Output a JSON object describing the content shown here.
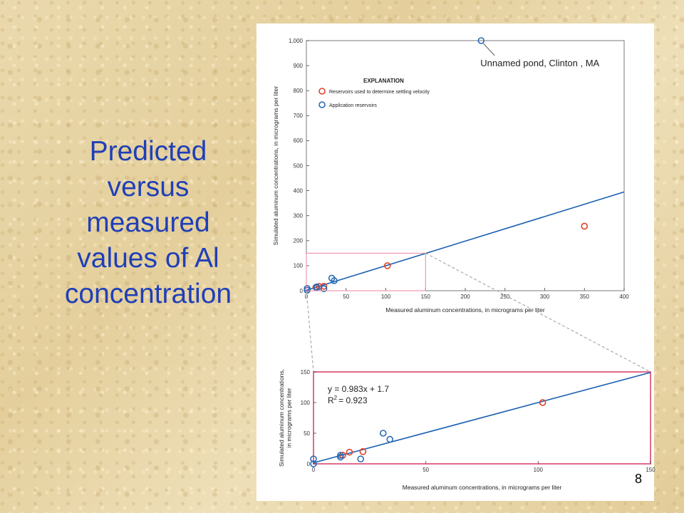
{
  "slide": {
    "title_lines": [
      "Predicted",
      "versus",
      "measured",
      "values of Al",
      "concentration"
    ],
    "page_number": "8",
    "title_color": "#1f3fb8"
  },
  "chart_data": [
    {
      "type": "scatter",
      "panel": "full",
      "xlabel": "Measured aluminum concentrations, in micrograms per liter",
      "ylabel": "Simulated aluminum concentrations, in micrograms per liter",
      "xlim": [
        0,
        400
      ],
      "ylim": [
        0,
        1000
      ],
      "xticks": [
        "0",
        "50",
        "100",
        "150",
        "200",
        "250",
        "300",
        "350",
        "400"
      ],
      "yticks": [
        "0",
        "100",
        "200",
        "300",
        "400",
        "500",
        "600",
        "700",
        "800",
        "900",
        "1,000"
      ],
      "legend": {
        "title": "EXPLANATION",
        "placement": "top-left",
        "entries": [
          {
            "label": "Reservoirs used to determine settling velocity",
            "color": "#e0402a"
          },
          {
            "label": "Application reservoirs",
            "color": "#2a6cb5"
          }
        ]
      },
      "annotation": "Unnamed pond, Clinton , MA",
      "series": [
        {
          "name": "Reservoirs used to determine settling velocity",
          "color": "#e0402a",
          "points": [
            [
              12,
              14
            ],
            [
              16,
              17
            ],
            [
              22,
              18
            ],
            [
              102,
              100
            ],
            [
              350,
              258
            ]
          ]
        },
        {
          "name": "Application reservoirs",
          "color": "#2a6cb5",
          "points": [
            [
              1,
              2
            ],
            [
              1,
              9
            ],
            [
              13,
              12
            ],
            [
              13,
              15
            ],
            [
              22,
              8
            ],
            [
              32,
              50
            ],
            [
              35,
              40
            ],
            [
              220,
              1000
            ]
          ]
        }
      ],
      "fit_line": {
        "slope": 0.983,
        "intercept": 1.7,
        "color": "#1a5fb0"
      },
      "inset_region": {
        "x": [
          0,
          150
        ],
        "y": [
          0,
          150
        ]
      }
    },
    {
      "type": "scatter",
      "panel": "zoom",
      "xlabel": "Measured aluminum concentrations, in micrograms per liter",
      "ylabel_lines": [
        "Simulated aluminum concentrations,",
        "in micrograms per liter"
      ],
      "xlim": [
        0,
        150
      ],
      "ylim": [
        0,
        150
      ],
      "xticks": [
        "0",
        "50",
        "100",
        "150"
      ],
      "yticks": [
        "0",
        "50",
        "100",
        "150"
      ],
      "equation": "y = 0.983x + 1.7",
      "r2_prefix": "R",
      "r2_sup": "2",
      "r2_value": "= 0.923",
      "series": [
        {
          "name": "Reservoirs used to determine settling velocity",
          "color": "#e0402a",
          "points": [
            [
              13,
              14
            ],
            [
              16,
              19
            ],
            [
              22,
              20
            ],
            [
              102,
              100
            ]
          ]
        },
        {
          "name": "Application reservoirs",
          "color": "#2a6cb5",
          "points": [
            [
              0,
              0
            ],
            [
              0,
              8
            ],
            [
              12,
              11
            ],
            [
              12,
              14
            ],
            [
              21,
              8
            ],
            [
              31,
              50
            ],
            [
              34,
              40
            ]
          ]
        }
      ],
      "fit_line": {
        "slope": 0.983,
        "intercept": 1.7,
        "color": "#1a5fb0"
      },
      "frame_color": "#e06b8a"
    }
  ]
}
